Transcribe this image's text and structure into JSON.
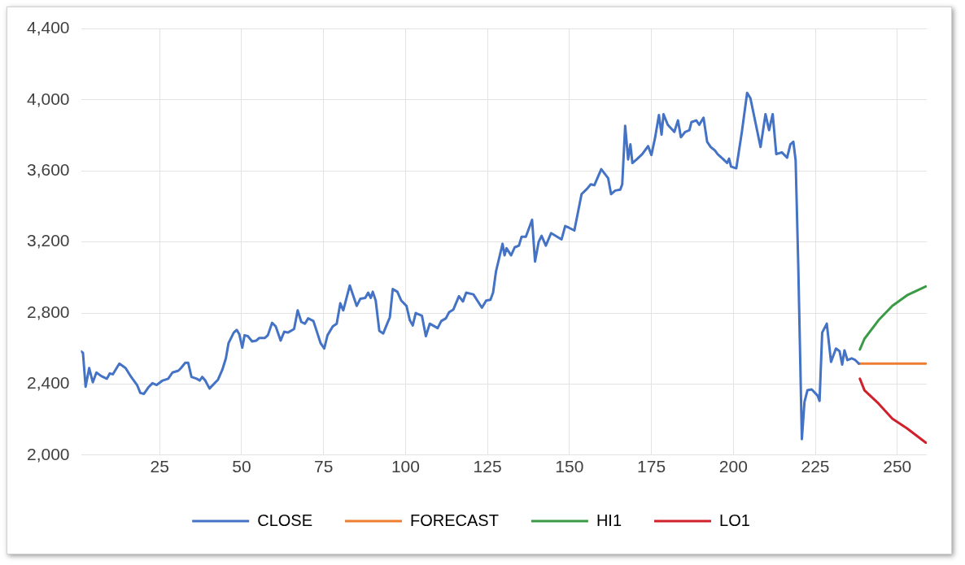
{
  "chart_data": {
    "type": "line",
    "xlim": [
      1,
      259
    ],
    "xticks": [
      25,
      50,
      75,
      100,
      125,
      150,
      175,
      200,
      225,
      250
    ],
    "ylim": [
      2000,
      4400
    ],
    "yticks": [
      {
        "value": 2000,
        "label": "2,000"
      },
      {
        "value": 2400,
        "label": "2,400"
      },
      {
        "value": 2800,
        "label": "2,800"
      },
      {
        "value": 3200,
        "label": "3,200"
      },
      {
        "value": 3600,
        "label": "3,600"
      },
      {
        "value": 4000,
        "label": "4,000"
      },
      {
        "value": 4400,
        "label": "4,400"
      }
    ],
    "grid": true,
    "legend": "bottom",
    "marker": "none",
    "line_style": "solid",
    "series": [
      {
        "name": "CLOSE",
        "color": "#4472c4",
        "x": [
          1,
          1.6,
          2.4,
          3.5,
          4.6,
          5.7,
          7.2,
          8.9,
          9.8,
          10.7,
          12.7,
          14.6,
          16.3,
          18.1,
          19.1,
          20.2,
          21.5,
          22.8,
          24.1,
          25.9,
          27.6,
          28.9,
          30.7,
          31.5,
          32.8,
          33.7,
          34.7,
          36.3,
          37.2,
          38,
          38.9,
          40.2,
          42.8,
          44.1,
          45.2,
          46,
          47.6,
          48.5,
          49.3,
          50.2,
          50.9,
          51.9,
          53.2,
          54.5,
          55.4,
          57.1,
          58,
          59.3,
          60.4,
          61.9,
          63,
          64.1,
          66,
          67.1,
          68.2,
          69.3,
          70.3,
          71.9,
          74.1,
          75.2,
          76.2,
          77.8,
          79,
          80.1,
          81,
          83,
          85.1,
          86.2,
          87.7,
          88.6,
          89.4,
          90,
          90.9,
          92,
          93.2,
          94.4,
          95.2,
          96.1,
          97.5,
          98.7,
          100.3,
          101.3,
          102.2,
          103.1,
          105,
          106.2,
          107.4,
          109.8,
          110.9,
          112.3,
          113.3,
          114.6,
          116.3,
          117.5,
          118.5,
          120.7,
          123.3,
          124.6,
          125.9,
          126.7,
          127.6,
          129.6,
          130.2,
          130.8,
          132.2,
          133.3,
          134.6,
          135.4,
          136.7,
          138.6,
          139.5,
          140.6,
          141.5,
          142.8,
          144.4,
          147.6,
          148.7,
          149.9,
          151.5,
          153.7,
          155.4,
          156.5,
          157.6,
          159.7,
          161.8,
          162.7,
          164,
          165.5,
          166.1,
          167,
          167.9,
          168.6,
          169.2,
          170.5,
          172.2,
          174,
          175,
          176.1,
          177.3,
          178.1,
          178.7,
          180,
          182,
          183.1,
          184,
          185.3,
          186.6,
          187.2,
          188.7,
          189.6,
          190.9,
          192,
          193.1,
          194.4,
          195.2,
          197,
          198.1,
          198.7,
          199.3,
          200.9,
          202.6,
          204.2,
          205.2,
          208.3,
          209.8,
          210.9,
          212,
          213.1,
          214.8,
          216.4,
          217.4,
          218.3,
          219,
          219.8,
          220.9,
          221.7,
          222.6,
          223.9,
          225.7,
          226.3,
          227.1,
          228.5,
          229.8,
          231.3,
          232.4,
          233.2,
          233.9,
          234.8,
          236.1,
          237.2,
          238.3
        ],
        "values": [
          2585,
          2575,
          2385,
          2490,
          2410,
          2465,
          2445,
          2430,
          2460,
          2455,
          2515,
          2490,
          2440,
          2395,
          2350,
          2345,
          2380,
          2405,
          2395,
          2420,
          2430,
          2465,
          2475,
          2490,
          2520,
          2520,
          2440,
          2430,
          2420,
          2440,
          2420,
          2375,
          2425,
          2480,
          2545,
          2630,
          2690,
          2705,
          2680,
          2605,
          2675,
          2670,
          2640,
          2645,
          2660,
          2660,
          2675,
          2745,
          2725,
          2645,
          2695,
          2690,
          2710,
          2815,
          2750,
          2740,
          2770,
          2755,
          2630,
          2600,
          2675,
          2725,
          2740,
          2855,
          2815,
          2955,
          2840,
          2880,
          2885,
          2915,
          2885,
          2920,
          2870,
          2700,
          2685,
          2740,
          2775,
          2935,
          2920,
          2870,
          2840,
          2760,
          2730,
          2800,
          2785,
          2670,
          2740,
          2715,
          2755,
          2770,
          2805,
          2820,
          2895,
          2865,
          2915,
          2905,
          2830,
          2870,
          2875,
          2915,
          3035,
          3190,
          3125,
          3165,
          3125,
          3170,
          3180,
          3230,
          3230,
          3325,
          3090,
          3200,
          3235,
          3180,
          3250,
          3215,
          3290,
          3280,
          3265,
          3470,
          3500,
          3525,
          3520,
          3610,
          3560,
          3470,
          3490,
          3495,
          3525,
          3855,
          3665,
          3750,
          3645,
          3665,
          3695,
          3740,
          3690,
          3785,
          3915,
          3805,
          3920,
          3860,
          3820,
          3885,
          3790,
          3820,
          3830,
          3875,
          3885,
          3860,
          3900,
          3765,
          3735,
          3715,
          3695,
          3665,
          3645,
          3670,
          3625,
          3615,
          3820,
          4040,
          4010,
          3735,
          3920,
          3830,
          3920,
          3695,
          3705,
          3675,
          3750,
          3765,
          3660,
          3070,
          2090,
          2300,
          2365,
          2370,
          2335,
          2305,
          2690,
          2740,
          2525,
          2600,
          2585,
          2510,
          2590,
          2535,
          2545,
          2535,
          2515
        ]
      },
      {
        "name": "FORECAST",
        "color": "#ed7d31",
        "x": [
          238.3,
          258.7
        ],
        "values": [
          2515,
          2515
        ]
      },
      {
        "name": "HI1",
        "color": "#3a9a46",
        "x": [
          238.6,
          240,
          244.3,
          248.5,
          253,
          258.7
        ],
        "values": [
          2595,
          2655,
          2760,
          2840,
          2900,
          2950
        ]
      },
      {
        "name": "LO1",
        "color": "#d0202a",
        "x": [
          238.6,
          240,
          244.3,
          248.5,
          253,
          258.7
        ],
        "values": [
          2430,
          2365,
          2290,
          2205,
          2150,
          2070
        ]
      }
    ]
  }
}
